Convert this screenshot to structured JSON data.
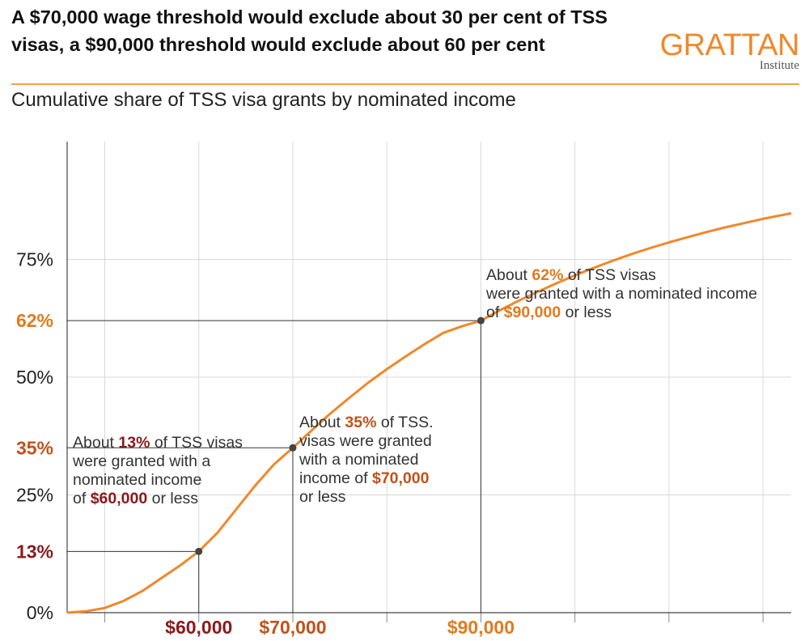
{
  "header": {
    "title": "A $70,000 wage threshold would exclude about 30 per cent of TSS visas, a $90,000 threshold would exclude about 60 per cent",
    "subtitle": "Cumulative share of TSS visa grants by nominated income",
    "logo_main": "GRATTAN",
    "logo_sub": "Institute"
  },
  "colors": {
    "curve": "#f0882a",
    "dark_red": "#8b1a1a",
    "orange_label": "#e07b1f",
    "brown_label": "#c0521a",
    "grid": "#d9d9d9",
    "guide": "#333333",
    "marker": "#444444"
  },
  "chart_data": {
    "type": "line",
    "title": "Cumulative share of TSS visa grants by nominated income",
    "xlabel": "",
    "ylabel": "",
    "xlim": [
      46000,
      123000
    ],
    "ylim": [
      0,
      100
    ],
    "y_ticks": [
      {
        "value": 0,
        "label": "0%",
        "style": "normal"
      },
      {
        "value": 13,
        "label": "13%",
        "style": "darkred"
      },
      {
        "value": 25,
        "label": "25%",
        "style": "normal"
      },
      {
        "value": 35,
        "label": "35%",
        "style": "brown"
      },
      {
        "value": 50,
        "label": "50%",
        "style": "normal"
      },
      {
        "value": 62,
        "label": "62%",
        "style": "orange"
      },
      {
        "value": 75,
        "label": "75%",
        "style": "normal"
      }
    ],
    "x_ticks": [
      {
        "value": 60000,
        "label": "$60,000",
        "style": "darkred"
      },
      {
        "value": 70000,
        "label": "$70,000",
        "style": "brown"
      },
      {
        "value": 90000,
        "label": "$90,000",
        "style": "orange"
      }
    ],
    "grid": true,
    "series": [
      {
        "x": [
          46000,
          48000,
          50000,
          52000,
          54000,
          56000,
          58000,
          60000,
          62000,
          64000,
          66000,
          68000,
          70000,
          72000,
          74000,
          76000,
          78000,
          80000,
          82000,
          84000,
          86000,
          88000,
          90000,
          92000,
          94000,
          96000,
          98000,
          100000,
          102000,
          104000,
          106000,
          108000,
          110000,
          112000,
          114000,
          116000,
          118000,
          120000,
          122000,
          123000
        ],
        "y": [
          0,
          0.3,
          1,
          2.5,
          4.6,
          7.3,
          10,
          13,
          17,
          22,
          27,
          31.5,
          35,
          38.7,
          42.3,
          45.6,
          48.8,
          51.7,
          54.4,
          57,
          59.4,
          60.8,
          62,
          64.2,
          66.2,
          68.1,
          69.9,
          71.6,
          73.2,
          74.7,
          76.1,
          77.4,
          78.6,
          79.7,
          80.8,
          81.8,
          82.7,
          83.6,
          84.4,
          84.8
        ]
      }
    ],
    "highlights": [
      {
        "x": 60000,
        "y": 13
      },
      {
        "x": 70000,
        "y": 35
      },
      {
        "x": 90000,
        "y": 62
      }
    ]
  },
  "annotations": [
    {
      "id": "ann60",
      "lines": [
        [
          {
            "t": "About ",
            "s": "n"
          },
          {
            "t": "13%",
            "s": "darkred"
          },
          {
            "t": " of TSS visas",
            "s": "n"
          }
        ],
        [
          {
            "t": "were granted with a",
            "s": "n"
          }
        ],
        [
          {
            "t": "nominated income",
            "s": "n"
          }
        ],
        [
          {
            "t": "of ",
            "s": "n"
          },
          {
            "t": "$60,000",
            "s": "darkred"
          },
          {
            "t": " or less",
            "s": "n"
          }
        ]
      ]
    },
    {
      "id": "ann70",
      "lines": [
        [
          {
            "t": "About ",
            "s": "n"
          },
          {
            "t": "35%",
            "s": "brown"
          },
          {
            "t": " of TSS.",
            "s": "n"
          }
        ],
        [
          {
            "t": "visas were granted",
            "s": "n"
          }
        ],
        [
          {
            "t": "with a nominated",
            "s": "n"
          }
        ],
        [
          {
            "t": "income of ",
            "s": "n"
          },
          {
            "t": "$70,000",
            "s": "brown"
          }
        ],
        [
          {
            "t": "or less",
            "s": "n"
          }
        ]
      ]
    },
    {
      "id": "ann90",
      "lines": [
        [
          {
            "t": "About ",
            "s": "n"
          },
          {
            "t": "62%",
            "s": "orange"
          },
          {
            "t": " of TSS visas",
            "s": "n"
          }
        ],
        [
          {
            "t": "were granted with a nominated income",
            "s": "n"
          }
        ],
        [
          {
            "t": "of ",
            "s": "n"
          },
          {
            "t": "$90,000",
            "s": "orange"
          },
          {
            "t": " or less",
            "s": "n"
          }
        ]
      ]
    }
  ]
}
